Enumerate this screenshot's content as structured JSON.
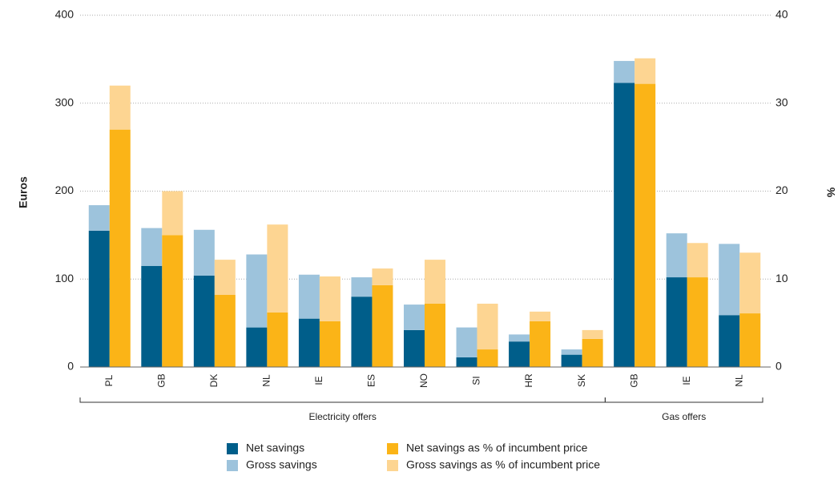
{
  "chart_data": {
    "type": "stacked_grouped_bar",
    "categories": [
      "PL",
      "GB",
      "DK",
      "NL",
      "IE",
      "ES",
      "NO",
      "SI",
      "HR",
      "SK",
      "GB",
      "IE",
      "NL"
    ],
    "category_groups": [
      "Electricity offers",
      "Electricity offers",
      "Electricity offers",
      "Electricity offers",
      "Electricity offers",
      "Electricity offers",
      "Electricity offers",
      "Electricity offers",
      "Electricity offers",
      "Electricity offers",
      "Gas offers",
      "Gas offers",
      "Gas offers"
    ],
    "ylabel": "Euros",
    "y2label": "%",
    "ylim": [
      0,
      400
    ],
    "yticks": [
      0,
      100,
      200,
      300,
      400
    ],
    "y2lim": [
      0,
      40
    ],
    "y2ticks": [
      0,
      10,
      20,
      30,
      40
    ],
    "grid": true,
    "series": [
      {
        "name": "Net savings",
        "color": "#005e8a",
        "axis": "y",
        "values": [
          155,
          115,
          104,
          45,
          55,
          80,
          42,
          11,
          29,
          14,
          323,
          102,
          59
        ]
      },
      {
        "name": "Gross savings",
        "color": "#9dc3dc",
        "axis": "y",
        "values": [
          29,
          43,
          52,
          83,
          50,
          22,
          29,
          34,
          8,
          6,
          25,
          50,
          81
        ]
      },
      {
        "name": "Net savings as % of incumbent price",
        "color": "#fbb417",
        "axis": "y2",
        "values": [
          27,
          15,
          8.2,
          6.2,
          5.2,
          9.3,
          7.2,
          2,
          5.2,
          3.2,
          32.2,
          10.2,
          6.1
        ]
      },
      {
        "name": "Gross savings as % of incumbent price",
        "color": "#fdd592",
        "axis": "y2",
        "values": [
          5,
          5,
          4,
          10,
          5.1,
          1.9,
          5,
          5.2,
          1.1,
          1,
          2.9,
          3.9,
          6.9
        ]
      }
    ]
  }
}
